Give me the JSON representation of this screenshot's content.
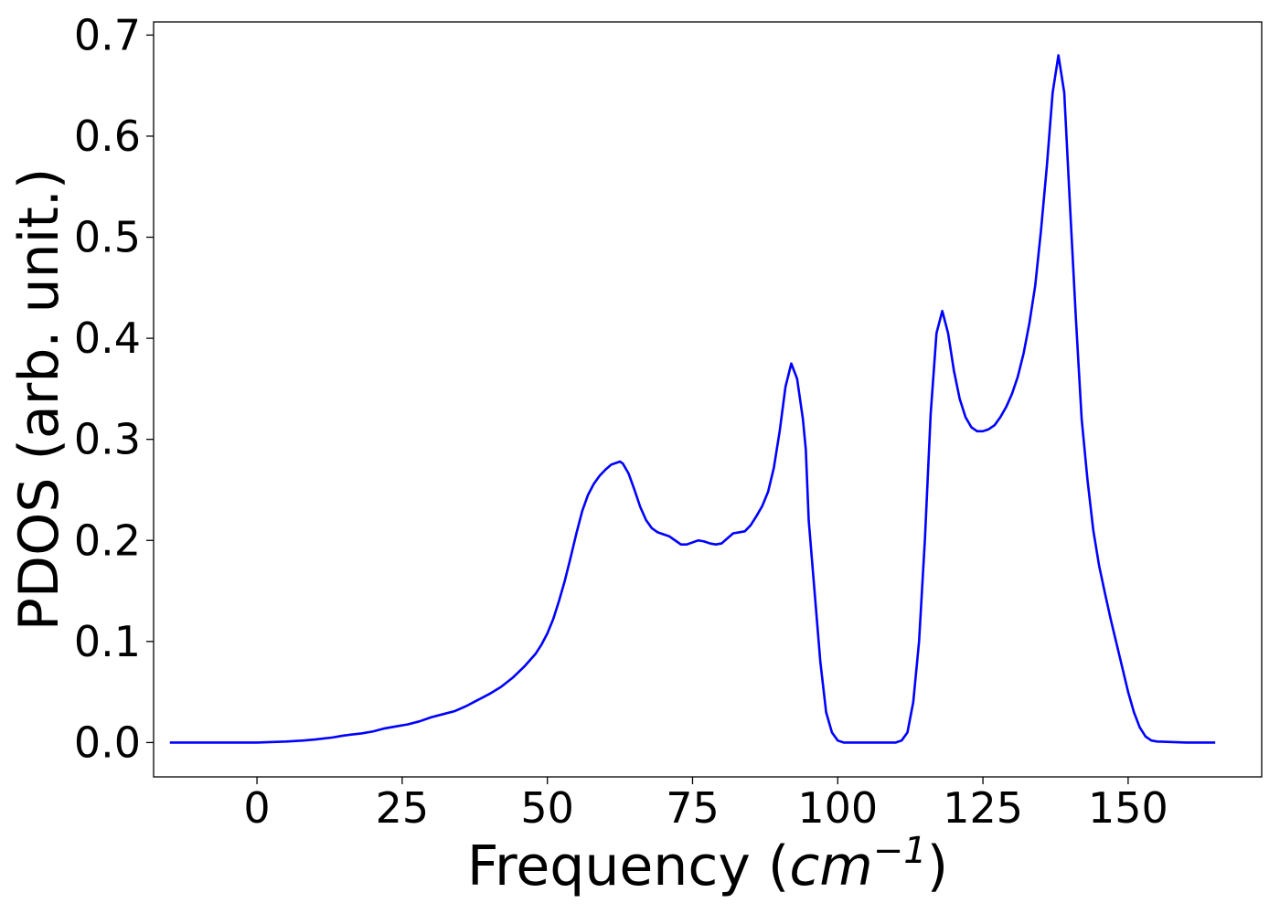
{
  "chart_data": {
    "type": "line",
    "xlabel_text": "Frequency (",
    "xlabel_math": "cm",
    "xlabel_sup": "−1",
    "xlabel_close": ")",
    "ylabel": "PDOS (arb. unit.)",
    "xlim": [
      -17.8,
      173.0
    ],
    "ylim": [
      -0.034,
      0.713
    ],
    "x_ticks": [
      0,
      25,
      50,
      75,
      100,
      125,
      150
    ],
    "y_ticks": [
      0.0,
      0.1,
      0.2,
      0.3,
      0.4,
      0.5,
      0.6,
      0.7
    ],
    "x_tick_labels": [
      "0",
      "25",
      "50",
      "75",
      "100",
      "125",
      "150"
    ],
    "y_tick_labels": [
      "0.0",
      "0.1",
      "0.2",
      "0.3",
      "0.4",
      "0.5",
      "0.6",
      "0.7"
    ],
    "grid": false,
    "series": [
      {
        "color": "#0000ff",
        "x": [
          -15,
          0,
          5,
          8,
          10,
          13,
          15,
          18,
          20,
          22,
          24,
          26,
          28,
          30,
          32,
          34,
          36,
          38,
          40,
          42,
          44,
          46,
          48,
          49,
          50,
          51,
          52,
          53,
          54,
          55,
          56,
          57,
          58,
          59,
          60,
          61,
          62,
          62.5,
          63,
          64,
          65,
          66,
          67,
          68,
          69,
          70,
          71,
          72,
          73,
          74,
          75,
          76,
          77,
          78,
          79,
          80,
          81,
          82,
          83,
          84,
          85,
          86,
          87,
          88,
          89,
          90,
          91,
          92,
          93,
          94,
          94.5,
          95,
          96,
          97,
          98,
          99,
          100,
          101,
          105,
          110,
          111,
          112,
          113,
          114,
          115,
          116,
          117,
          118,
          119,
          120,
          121,
          122,
          123,
          124,
          125,
          126,
          127,
          128,
          129,
          130,
          131,
          132,
          133,
          134,
          135,
          136,
          137,
          138,
          139,
          140,
          141,
          142,
          143,
          144,
          145,
          146,
          147,
          148,
          149,
          150,
          151,
          152,
          153,
          154,
          155,
          160,
          165
        ],
        "y": [
          0.0,
          0.0,
          0.001,
          0.002,
          0.003,
          0.005,
          0.007,
          0.009,
          0.011,
          0.014,
          0.016,
          0.018,
          0.021,
          0.025,
          0.028,
          0.031,
          0.036,
          0.042,
          0.048,
          0.055,
          0.064,
          0.075,
          0.088,
          0.097,
          0.108,
          0.122,
          0.14,
          0.16,
          0.183,
          0.207,
          0.229,
          0.245,
          0.256,
          0.264,
          0.27,
          0.275,
          0.277,
          0.278,
          0.276,
          0.266,
          0.25,
          0.233,
          0.22,
          0.212,
          0.208,
          0.206,
          0.204,
          0.2,
          0.196,
          0.196,
          0.198,
          0.2,
          0.199,
          0.197,
          0.196,
          0.197,
          0.202,
          0.207,
          0.208,
          0.209,
          0.215,
          0.224,
          0.234,
          0.248,
          0.272,
          0.308,
          0.352,
          0.375,
          0.36,
          0.32,
          0.29,
          0.22,
          0.15,
          0.08,
          0.03,
          0.01,
          0.002,
          0.0,
          0.0,
          0.0,
          0.002,
          0.01,
          0.04,
          0.1,
          0.2,
          0.325,
          0.405,
          0.427,
          0.405,
          0.368,
          0.34,
          0.322,
          0.312,
          0.308,
          0.308,
          0.31,
          0.314,
          0.322,
          0.332,
          0.345,
          0.362,
          0.385,
          0.415,
          0.452,
          0.507,
          0.57,
          0.643,
          0.68,
          0.643,
          0.53,
          0.42,
          0.32,
          0.26,
          0.21,
          0.175,
          0.148,
          0.122,
          0.098,
          0.074,
          0.05,
          0.03,
          0.015,
          0.006,
          0.002,
          0.001,
          0.0,
          0.0
        ]
      }
    ]
  }
}
